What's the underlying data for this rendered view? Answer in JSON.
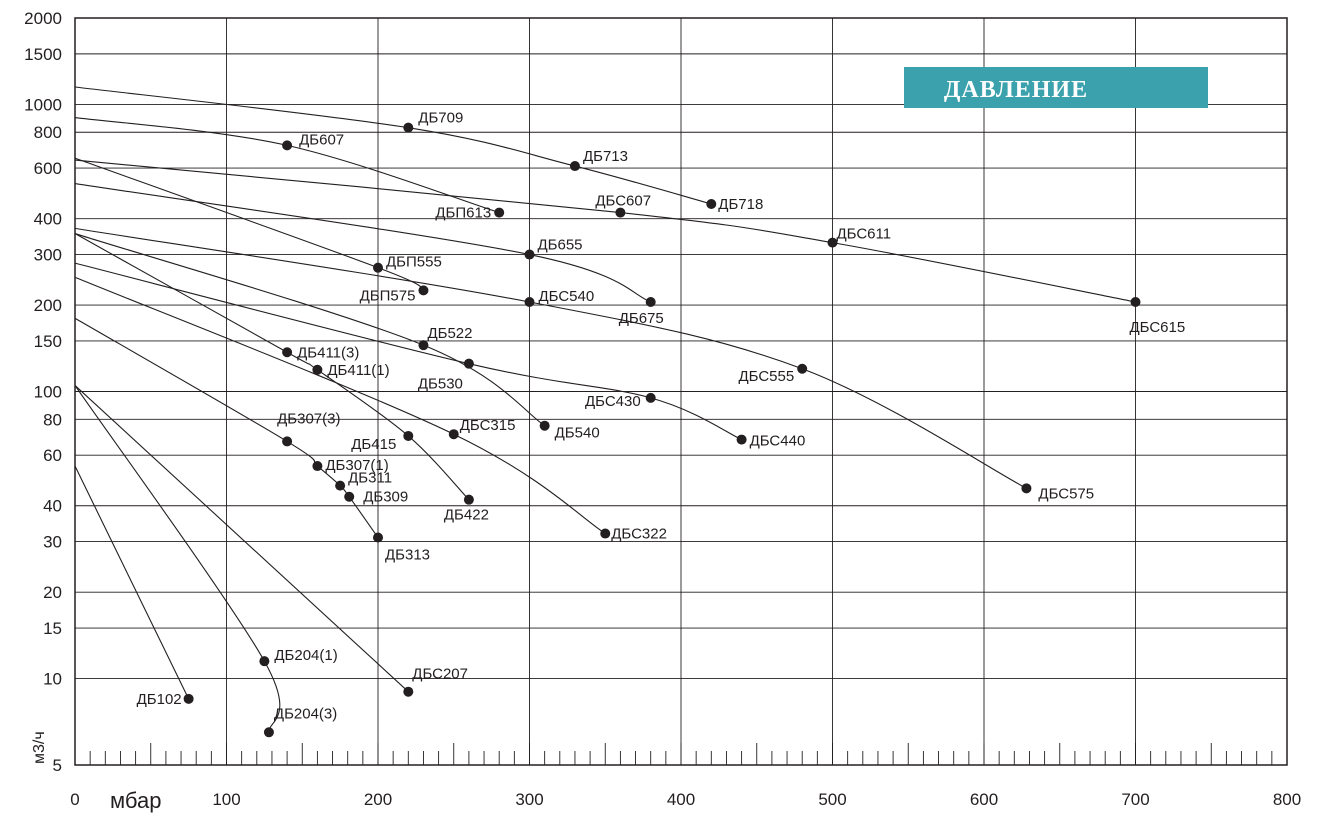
{
  "chart_data": {
    "type": "line",
    "title": "ДАВЛЕНИЕ",
    "xlabel": "мбар",
    "ylabel": "м3/ч",
    "x_scale": "linear",
    "y_scale": "log",
    "xlim": [
      0,
      800
    ],
    "ylim": [
      5,
      2000
    ],
    "x_ticks": [
      0,
      100,
      200,
      300,
      400,
      500,
      600,
      700,
      800
    ],
    "x_tick_labels": [
      "0",
      "100",
      "200",
      "300",
      "400",
      "500",
      "600",
      "700",
      "800"
    ],
    "y_ticks": [
      5,
      10,
      15,
      20,
      30,
      40,
      60,
      80,
      100,
      150,
      200,
      300,
      400,
      600,
      800,
      1000,
      1500,
      2000
    ],
    "y_tick_labels": [
      "5",
      "10",
      "15",
      "20",
      "30",
      "40",
      "60",
      "80",
      "100",
      "150",
      "200",
      "300",
      "400",
      "600",
      "800",
      "1000",
      "1500",
      "2000"
    ],
    "grid": true,
    "curves": [
      {
        "points": [
          [
            0,
            1150
          ],
          [
            220,
            830
          ],
          [
            330,
            610
          ],
          [
            420,
            450
          ]
        ]
      },
      {
        "points": [
          [
            0,
            900
          ],
          [
            140,
            720
          ],
          [
            280,
            420
          ]
        ]
      },
      {
        "points": [
          [
            0,
            640
          ],
          [
            360,
            420
          ],
          [
            500,
            330
          ],
          [
            700,
            205
          ]
        ]
      },
      {
        "points": [
          [
            0,
            530
          ],
          [
            300,
            300
          ],
          [
            380,
            205
          ]
        ]
      },
      {
        "points": [
          [
            0,
            650
          ],
          [
            200,
            270
          ],
          [
            230,
            225
          ]
        ]
      },
      {
        "points": [
          [
            0,
            370
          ],
          [
            300,
            205
          ],
          [
            480,
            120
          ],
          [
            628,
            46
          ]
        ]
      },
      {
        "points": [
          [
            0,
            355
          ],
          [
            230,
            145
          ],
          [
            310,
            76
          ]
        ]
      },
      {
        "points": [
          [
            0,
            280
          ],
          [
            260,
            125
          ],
          [
            380,
            95
          ],
          [
            440,
            68
          ]
        ]
      },
      {
        "points": [
          [
            0,
            355
          ],
          [
            140,
            137
          ],
          [
            160,
            119
          ],
          [
            220,
            70
          ],
          [
            260,
            42
          ]
        ]
      },
      {
        "points": [
          [
            0,
            250
          ],
          [
            250,
            71
          ],
          [
            350,
            32
          ]
        ]
      },
      {
        "points": [
          [
            0,
            180
          ],
          [
            140,
            67
          ],
          [
            160,
            55
          ],
          [
            175,
            47
          ],
          [
            181,
            43
          ],
          [
            200,
            31
          ]
        ]
      },
      {
        "points": [
          [
            0,
            105
          ],
          [
            220,
            9
          ]
        ]
      },
      {
        "points": [
          [
            0,
            105
          ],
          [
            125,
            11.5
          ],
          [
            128,
            6.5
          ]
        ]
      },
      {
        "points": [
          [
            0,
            55
          ],
          [
            75,
            8.5
          ]
        ]
      }
    ],
    "labeled_points": [
      {
        "label": "ДБ709",
        "x": 220,
        "y": 830
      },
      {
        "label": "ДБ713",
        "x": 330,
        "y": 610
      },
      {
        "label": "ДБ718",
        "x": 420,
        "y": 450
      },
      {
        "label": "ДБ607",
        "x": 140,
        "y": 720
      },
      {
        "label": "ДБП613",
        "x": 280,
        "y": 420
      },
      {
        "label": "ДБС607",
        "x": 360,
        "y": 420
      },
      {
        "label": "ДБС611",
        "x": 500,
        "y": 330
      },
      {
        "label": "ДБС615",
        "x": 700,
        "y": 205
      },
      {
        "label": "ДБ655",
        "x": 300,
        "y": 300
      },
      {
        "label": "ДБ675",
        "x": 380,
        "y": 205
      },
      {
        "label": "ДБП555",
        "x": 200,
        "y": 270
      },
      {
        "label": "ДБП575",
        "x": 230,
        "y": 225
      },
      {
        "label": "ДБС540",
        "x": 300,
        "y": 205
      },
      {
        "label": "ДБС555",
        "x": 480,
        "y": 120
      },
      {
        "label": "ДБС575",
        "x": 628,
        "y": 46
      },
      {
        "label": "ДБ522",
        "x": 230,
        "y": 145
      },
      {
        "label": "ДБ540",
        "x": 310,
        "y": 76
      },
      {
        "label": "ДБ530",
        "x": 260,
        "y": 125
      },
      {
        "label": "ДБС430",
        "x": 380,
        "y": 95
      },
      {
        "label": "ДБС440",
        "x": 440,
        "y": 68
      },
      {
        "label": "ДБ411(3)",
        "x": 140,
        "y": 137
      },
      {
        "label": "ДБ411(1)",
        "x": 160,
        "y": 119
      },
      {
        "label": "ДБ415",
        "x": 220,
        "y": 70
      },
      {
        "label": "ДБ422",
        "x": 260,
        "y": 42
      },
      {
        "label": "ДБС315",
        "x": 250,
        "y": 71
      },
      {
        "label": "ДБС322",
        "x": 350,
        "y": 32
      },
      {
        "label": "ДБ307(3)",
        "x": 140,
        "y": 67
      },
      {
        "label": "ДБ307(1)",
        "x": 160,
        "y": 55
      },
      {
        "label": "ДБ311",
        "x": 175,
        "y": 47
      },
      {
        "label": "ДБ309",
        "x": 181,
        "y": 43
      },
      {
        "label": "ДБ313",
        "x": 200,
        "y": 31
      },
      {
        "label": "ДБС207",
        "x": 220,
        "y": 9
      },
      {
        "label": "ДБ204(1)",
        "x": 125,
        "y": 11.5
      },
      {
        "label": "ДБ204(3)",
        "x": 128,
        "y": 6.5
      },
      {
        "label": "ДБ102",
        "x": 75,
        "y": 8.5
      }
    ]
  }
}
